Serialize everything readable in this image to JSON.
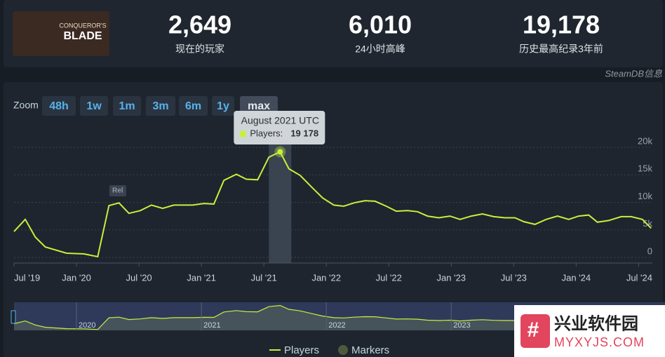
{
  "header": {
    "logo_text": [
      "CONQUEROR'S",
      "BLADE"
    ],
    "stats": [
      {
        "value": "2,649",
        "label": "现在的玩家"
      },
      {
        "value": "6,010",
        "label": "24小时高峰"
      },
      {
        "value": "19,178",
        "label": "历史最高纪录3年前"
      }
    ],
    "source": "SteamDB信息"
  },
  "zoom": {
    "label": "Zoom",
    "buttons": [
      "48h",
      "1w",
      "1m",
      "3m",
      "6m",
      "1y",
      "max"
    ],
    "active": "max"
  },
  "chart_data": {
    "type": "line",
    "x": [
      2019.5,
      2019.59,
      2019.67,
      2019.75,
      2019.92,
      2020.06,
      2020.17,
      2020.26,
      2020.34,
      2020.42,
      2020.51,
      2020.6,
      2020.69,
      2020.78,
      2020.93,
      2021.02,
      2021.1,
      2021.18,
      2021.28,
      2021.36,
      2021.45,
      2021.54,
      2021.63,
      2021.7,
      2021.79,
      2021.89,
      2021.97,
      2022.06,
      2022.14,
      2022.22,
      2022.31,
      2022.39,
      2022.48,
      2022.56,
      2022.65,
      2022.73,
      2022.81,
      2022.9,
      2022.99,
      2023.07,
      2023.16,
      2023.25,
      2023.34,
      2023.43,
      2023.51,
      2023.58,
      2023.67,
      2023.76,
      2023.85,
      2023.94,
      2024.02,
      2024.1,
      2024.17,
      2024.26,
      2024.36,
      2024.44,
      2024.53,
      2024.6
    ],
    "series": [
      {
        "name": "Players",
        "color": "#c6f03c",
        "values": [
          4700,
          6900,
          3700,
          1900,
          760,
          640,
          130,
          9400,
          9900,
          8000,
          8500,
          9500,
          8900,
          9500,
          9500,
          9800,
          9700,
          14000,
          15100,
          14200,
          14100,
          18200,
          19178,
          16100,
          14900,
          12600,
          10800,
          9500,
          9300,
          9900,
          10300,
          10200,
          9300,
          8400,
          8500,
          8300,
          7500,
          7200,
          7500,
          6900,
          7500,
          7900,
          7400,
          7200,
          7200,
          6500,
          6000,
          6900,
          7500,
          6900,
          7500,
          7700,
          6400,
          6700,
          7400,
          7400,
          6900,
          5300
        ]
      }
    ],
    "xlim": [
      2019.5,
      2024.61
    ],
    "xticks": [
      {
        "value": 2019.5,
        "label": "Jul '19"
      },
      {
        "value": 2020,
        "label": "Jan '20"
      },
      {
        "value": 2020.5,
        "label": "Jul '20"
      },
      {
        "value": 2021,
        "label": "Jan '21"
      },
      {
        "value": 2021.5,
        "label": "Jul '21"
      },
      {
        "value": 2022,
        "label": "Jan '22"
      },
      {
        "value": 2022.5,
        "label": "Jul '22"
      },
      {
        "value": 2023,
        "label": "Jan '23"
      },
      {
        "value": 2023.5,
        "label": "Jul '23"
      },
      {
        "value": 2024,
        "label": "Jan '24"
      },
      {
        "value": 2024.5,
        "label": "Jul '24"
      }
    ],
    "ylim": [
      0,
      20000
    ],
    "yticks": [
      {
        "value": 0,
        "label": "0"
      },
      {
        "value": 5000,
        "label": "5k"
      },
      {
        "value": 10000,
        "label": "10k"
      },
      {
        "value": 15000,
        "label": "15k"
      },
      {
        "value": 20000,
        "label": "20k"
      }
    ],
    "grid": true,
    "annotations": [
      {
        "text": "Rel",
        "x": 2020.33
      }
    ],
    "tooltip": {
      "title": "August 2021 UTC",
      "label": "Players:",
      "value": "19 178",
      "index": 22
    },
    "navigator_ticks": [
      2020,
      2021,
      2022,
      2023
    ],
    "marker_legend": "Markers"
  },
  "watermark": {
    "title": "兴业软件园",
    "url": "MYXYJS.COM"
  }
}
